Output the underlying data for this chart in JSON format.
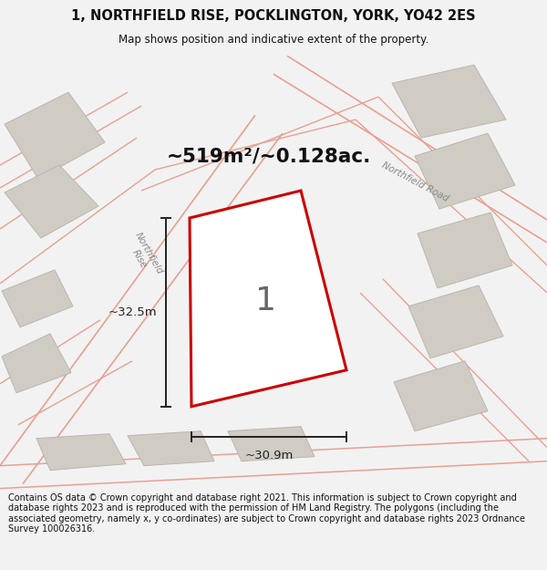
{
  "title_line1": "1, NORTHFIELD RISE, POCKLINGTON, YORK, YO42 2ES",
  "title_line2": "Map shows position and indicative extent of the property.",
  "area_text": "~519m²/~0.128ac.",
  "label_number": "1",
  "dim_vertical": "~32.5m",
  "dim_horizontal": "~30.9m",
  "footer_text": "Contains OS data © Crown copyright and database right 2021. This information is subject to Crown copyright and database rights 2023 and is reproduced with the permission of HM Land Registry. The polygons (including the associated geometry, namely x, y co-ordinates) are subject to Crown copyright and database rights 2023 Ordnance Survey 100026316.",
  "bg_color": "#f2f2f2",
  "map_bg": "#ede9e3",
  "plot_fill": "#ffffff",
  "plot_edge": "#cc0000",
  "building_fill": "#d0ccc4",
  "building_edge": "#bbb5ad",
  "road_color": "#e8a090",
  "road_label_color": "#888888",
  "dim_line_color": "#222222",
  "text_color": "#111111",
  "road_lw": 1.0,
  "building_lw": 0.7,
  "plot_lw": 2.2
}
